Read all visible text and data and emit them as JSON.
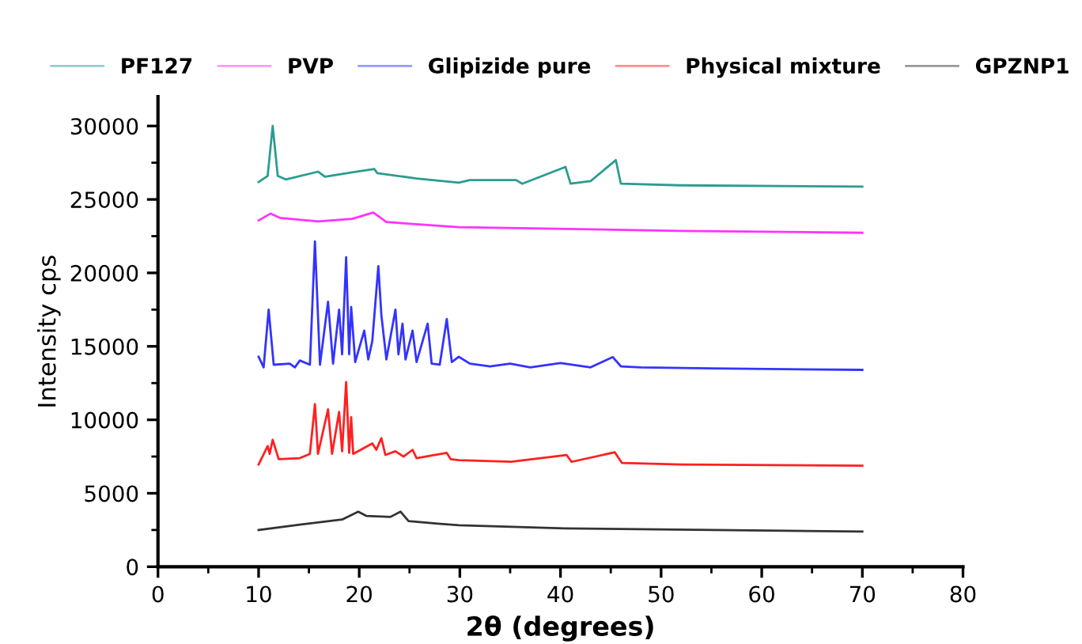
{
  "chart_data": {
    "type": "line",
    "xlabel": "2θ (degrees)",
    "ylabel": "Intensity cps",
    "xlim": [
      0,
      80
    ],
    "ylim": [
      0,
      32000
    ],
    "xticks": [
      0,
      {
        "value": 5,
        "label": null
      },
      10,
      {
        "value": 15,
        "label": null
      },
      20,
      {
        "value": 25,
        "label": null
      },
      30,
      {
        "value": 35,
        "label": null
      },
      40,
      {
        "value": 45,
        "label": null
      },
      50,
      {
        "value": 55,
        "label": null
      },
      60,
      {
        "value": 65,
        "label": null
      },
      70,
      {
        "value": 75,
        "label": null
      },
      80
    ],
    "yticks": [
      0,
      {
        "value": 2500,
        "label": null
      },
      5000,
      {
        "value": 7500,
        "label": null
      },
      10000,
      {
        "value": 12500,
        "label": null
      },
      15000,
      {
        "value": 17500,
        "label": null
      },
      20000,
      {
        "value": 22500,
        "label": null
      },
      25000,
      {
        "value": 27500,
        "label": null
      },
      30000
    ],
    "grid": false,
    "legend": "top",
    "marker": "none",
    "line_style": "solid",
    "series": [
      {
        "name": "PF127",
        "color": "#2a9d8f",
        "x": [
          10,
          10.9,
          11.4,
          11.9,
          12.7,
          15.9,
          16.6,
          19.4,
          21.5,
          21.8,
          25.7,
          29.9,
          31,
          35.6,
          36.2,
          40.5,
          41,
          43,
          45.5,
          46,
          51.9,
          70
        ],
        "values": [
          26180,
          26600,
          30000,
          26610,
          26360,
          26890,
          26540,
          26860,
          27070,
          26790,
          26430,
          26140,
          26320,
          26320,
          26070,
          27210,
          26070,
          26250,
          27680,
          26070,
          25960,
          25870
        ]
      },
      {
        "name": "PVP",
        "color": "#ff33ff",
        "x": [
          10,
          11.2,
          12.1,
          15.9,
          19.3,
          21.4,
          22.7,
          29.9,
          52,
          70
        ],
        "values": [
          23570,
          24040,
          23750,
          23500,
          23680,
          24110,
          23460,
          23110,
          22860,
          22730
        ]
      },
      {
        "name": "Glipizide pure",
        "color": "#3333ff",
        "x": [
          10,
          10.5,
          11.0,
          11.5,
          13.1,
          13.6,
          14.1,
          15.1,
          15.6,
          16.1,
          16.9,
          17.4,
          18.0,
          18.3,
          18.7,
          19.0,
          19.2,
          19.6,
          20.5,
          20.9,
          21.3,
          21.9,
          22.2,
          22.7,
          23.6,
          23.9,
          24.3,
          24.6,
          25.3,
          25.7,
          26.8,
          27.2,
          28.0,
          28.7,
          29.2,
          29.9,
          31,
          33,
          35,
          37,
          40,
          43,
          45.2,
          46,
          48,
          55,
          70
        ],
        "values": [
          14290,
          13570,
          17500,
          13750,
          13820,
          13570,
          14040,
          13750,
          22140,
          13750,
          18040,
          13820,
          17500,
          14460,
          21070,
          14460,
          17680,
          13930,
          16070,
          14110,
          15360,
          20460,
          17140,
          14110,
          17500,
          14460,
          16540,
          14110,
          16070,
          13930,
          16540,
          13820,
          13750,
          16860,
          13930,
          14290,
          13820,
          13640,
          13820,
          13570,
          13860,
          13570,
          14270,
          13640,
          13570,
          13500,
          13400
        ]
      },
      {
        "name": "Physical mixture",
        "color": "#ff2020",
        "x": [
          10,
          10.9,
          11.1,
          11.4,
          12.0,
          14.1,
          15.1,
          15.6,
          15.9,
          16.9,
          17.3,
          18.0,
          18.3,
          18.7,
          19.0,
          19.2,
          19.4,
          21.3,
          21.7,
          22.2,
          22.6,
          23.6,
          24.4,
          25.3,
          25.7,
          28.7,
          29.1,
          29.9,
          35.1,
          40.6,
          41.1,
          45.4,
          46.1,
          52,
          70
        ],
        "values": [
          6960,
          8210,
          7680,
          8640,
          7320,
          7390,
          7680,
          11070,
          7680,
          10710,
          7680,
          10540,
          7860,
          12570,
          7750,
          10180,
          7680,
          8390,
          7960,
          8750,
          7610,
          7860,
          7500,
          7960,
          7390,
          7750,
          7320,
          7250,
          7140,
          7610,
          7140,
          7790,
          7070,
          6960,
          6880
        ]
      },
      {
        "name": "GPZNP1",
        "color": "#333333",
        "x": [
          10,
          14.1,
          18.3,
          19.9,
          20.7,
          23.1,
          24.1,
          24.9,
          27.8,
          29.9,
          40.4,
          70
        ],
        "values": [
          2500,
          2860,
          3210,
          3750,
          3460,
          3390,
          3750,
          3110,
          2930,
          2820,
          2610,
          2390
        ]
      }
    ]
  }
}
